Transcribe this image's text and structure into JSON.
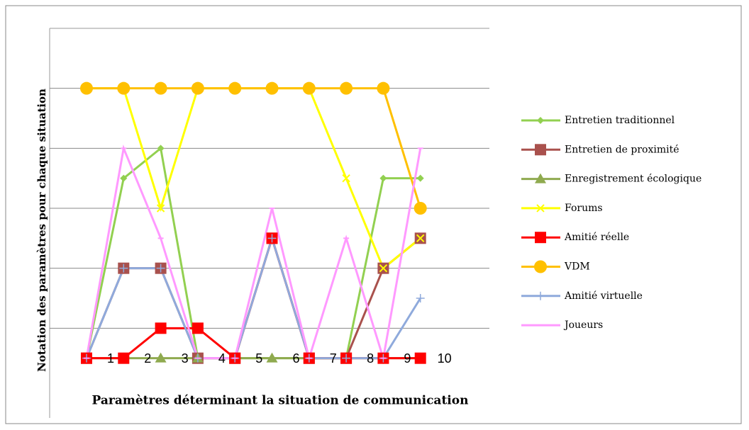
{
  "chart_data": {
    "type": "line",
    "x_label": "Paramètres déterminant la situation de communication",
    "y_label": "Notation des paramètres pour chaque situation",
    "categories": [
      "1",
      "2",
      "3",
      "4",
      "5",
      "6",
      "7",
      "8",
      "9",
      "10"
    ],
    "ylim": [
      0,
      6
    ],
    "yticks": [
      1,
      2,
      3,
      4,
      5
    ],
    "grid": true,
    "legend": "right",
    "series": [
      {
        "name": "Entretien traditionnel",
        "color": "#92d050",
        "marker": "diamond",
        "values": [
          0.5,
          3.5,
          4,
          0.5,
          0.5,
          0.5,
          0.5,
          0.5,
          3.5,
          3.5
        ]
      },
      {
        "name": "Entretien de proximité",
        "color": "#a9514d",
        "marker": "square",
        "values": [
          0.5,
          2,
          2,
          0.5,
          0.5,
          2.5,
          0.5,
          0.5,
          2,
          2.5
        ]
      },
      {
        "name": "Enregistrement écologique",
        "color": "#8faa4f",
        "marker": "triangle",
        "values": [
          0.5,
          0.5,
          0.5,
          0.5,
          0.5,
          0.5,
          0.5,
          0.5,
          0.5,
          0.5
        ]
      },
      {
        "name": "Forums",
        "color": "#ffff00",
        "marker": "x",
        "values": [
          5,
          5,
          3,
          5,
          5,
          5,
          5,
          3.5,
          2,
          2.5
        ]
      },
      {
        "name": "Amitié réelle",
        "color": "#ff0000",
        "marker": "square",
        "values": [
          0.5,
          0.5,
          1,
          1,
          0.5,
          2.5,
          0.5,
          0.5,
          0.5,
          0.5
        ]
      },
      {
        "name": "VDM",
        "color": "#ffc000",
        "marker": "circle",
        "values": [
          5,
          5,
          5,
          5,
          5,
          5,
          5,
          5,
          5,
          3
        ]
      },
      {
        "name": "Amitié virtuelle",
        "color": "#8faadc",
        "marker": "plus",
        "values": [
          0.5,
          2,
          2,
          0.5,
          0.5,
          2.5,
          0.5,
          0.5,
          0.5,
          1.5
        ]
      },
      {
        "name": "Joueurs",
        "color": "#ff99ff",
        "marker": "dash",
        "values": [
          0.5,
          4,
          2.5,
          0.5,
          0.5,
          3,
          0.5,
          2.5,
          0.5,
          4
        ]
      }
    ]
  }
}
